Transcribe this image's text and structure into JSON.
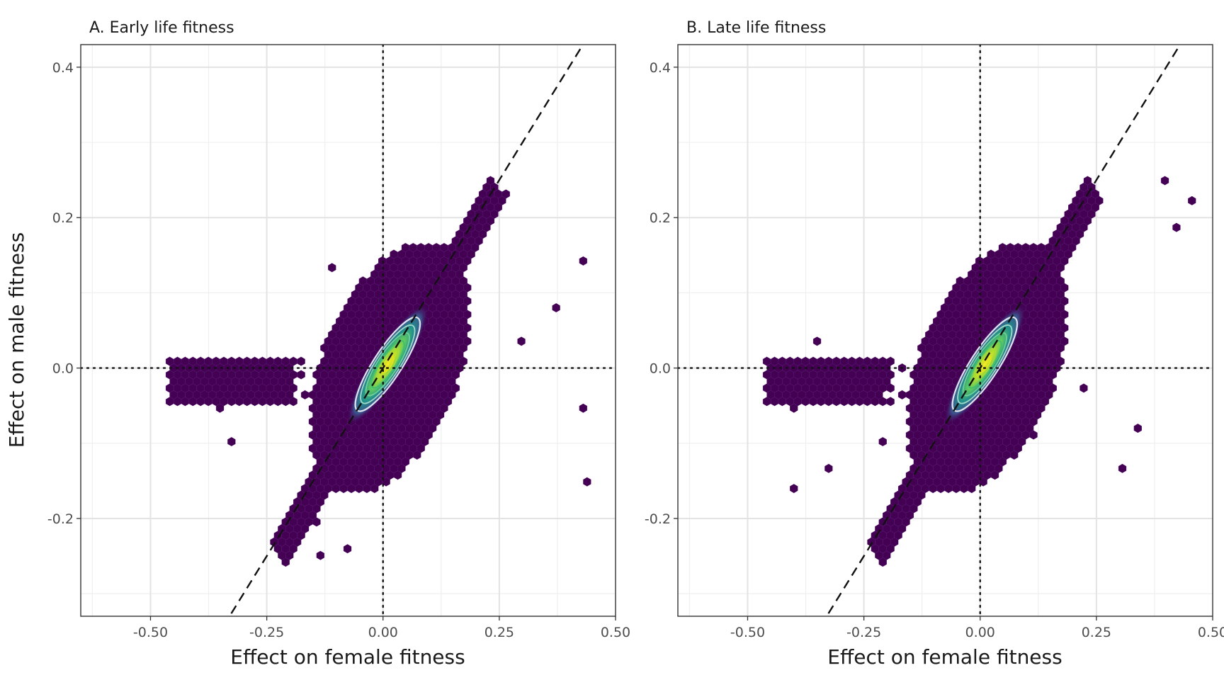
{
  "chart_data": [
    {
      "type": "hexbin",
      "title": "A. Early life fitness",
      "xlabel": "Effect on female fitness",
      "ylabel": "Effect on male fitness",
      "xlim": [
        -0.65,
        0.5
      ],
      "ylim": [
        -0.33,
        0.43
      ],
      "xticks": [
        {
          "value": -0.5,
          "label": "-0.50"
        },
        {
          "value": -0.25,
          "label": "-0.25"
        },
        {
          "value": 0.0,
          "label": "0.00"
        },
        {
          "value": 0.25,
          "label": "0.25"
        },
        {
          "value": 0.5,
          "label": "0.50"
        }
      ],
      "yticks": [
        {
          "value": -0.2,
          "label": "-0.2"
        },
        {
          "value": 0.0,
          "label": "0.0"
        },
        {
          "value": 0.2,
          "label": "0.2"
        },
        {
          "value": 0.4,
          "label": "0.4"
        }
      ],
      "reference_lines": {
        "vertical_dotted_x": 0,
        "horizontal_dotted_y": 0,
        "dashed_identity_slope": 1
      },
      "density_core": {
        "center": [
          0.01,
          0.005
        ],
        "angle_deg": 57,
        "contour_levels": 6
      },
      "colormap": [
        "#440154",
        "#3b528b",
        "#21918c",
        "#5ec962",
        "#fde725"
      ]
    },
    {
      "type": "hexbin",
      "title": "B. Late life fitness",
      "xlabel": "Effect on female fitness",
      "ylabel": "",
      "xlim": [
        -0.65,
        0.5
      ],
      "ylim": [
        -0.33,
        0.43
      ],
      "xticks": [
        {
          "value": -0.5,
          "label": "-0.50"
        },
        {
          "value": -0.25,
          "label": "-0.25"
        },
        {
          "value": 0.0,
          "label": "0.00"
        },
        {
          "value": 0.25,
          "label": "0.25"
        },
        {
          "value": 0.5,
          "label": "0.50"
        }
      ],
      "yticks": [
        {
          "value": -0.2,
          "label": "-0.2"
        },
        {
          "value": 0.0,
          "label": "0.0"
        },
        {
          "value": 0.2,
          "label": "0.2"
        },
        {
          "value": 0.4,
          "label": "0.4"
        }
      ],
      "reference_lines": {
        "vertical_dotted_x": 0,
        "horizontal_dotted_y": 0,
        "dashed_identity_slope": 1
      },
      "density_core": {
        "center": [
          0.01,
          0.005
        ],
        "angle_deg": 57,
        "contour_levels": 6
      },
      "colormap": [
        "#440154",
        "#3b528b",
        "#21918c",
        "#5ec962",
        "#fde725"
      ]
    }
  ],
  "shared": {
    "ylabel": "Effect on male fitness",
    "colors": {
      "hex_fill": "#440154",
      "background": "#ffffff"
    }
  }
}
